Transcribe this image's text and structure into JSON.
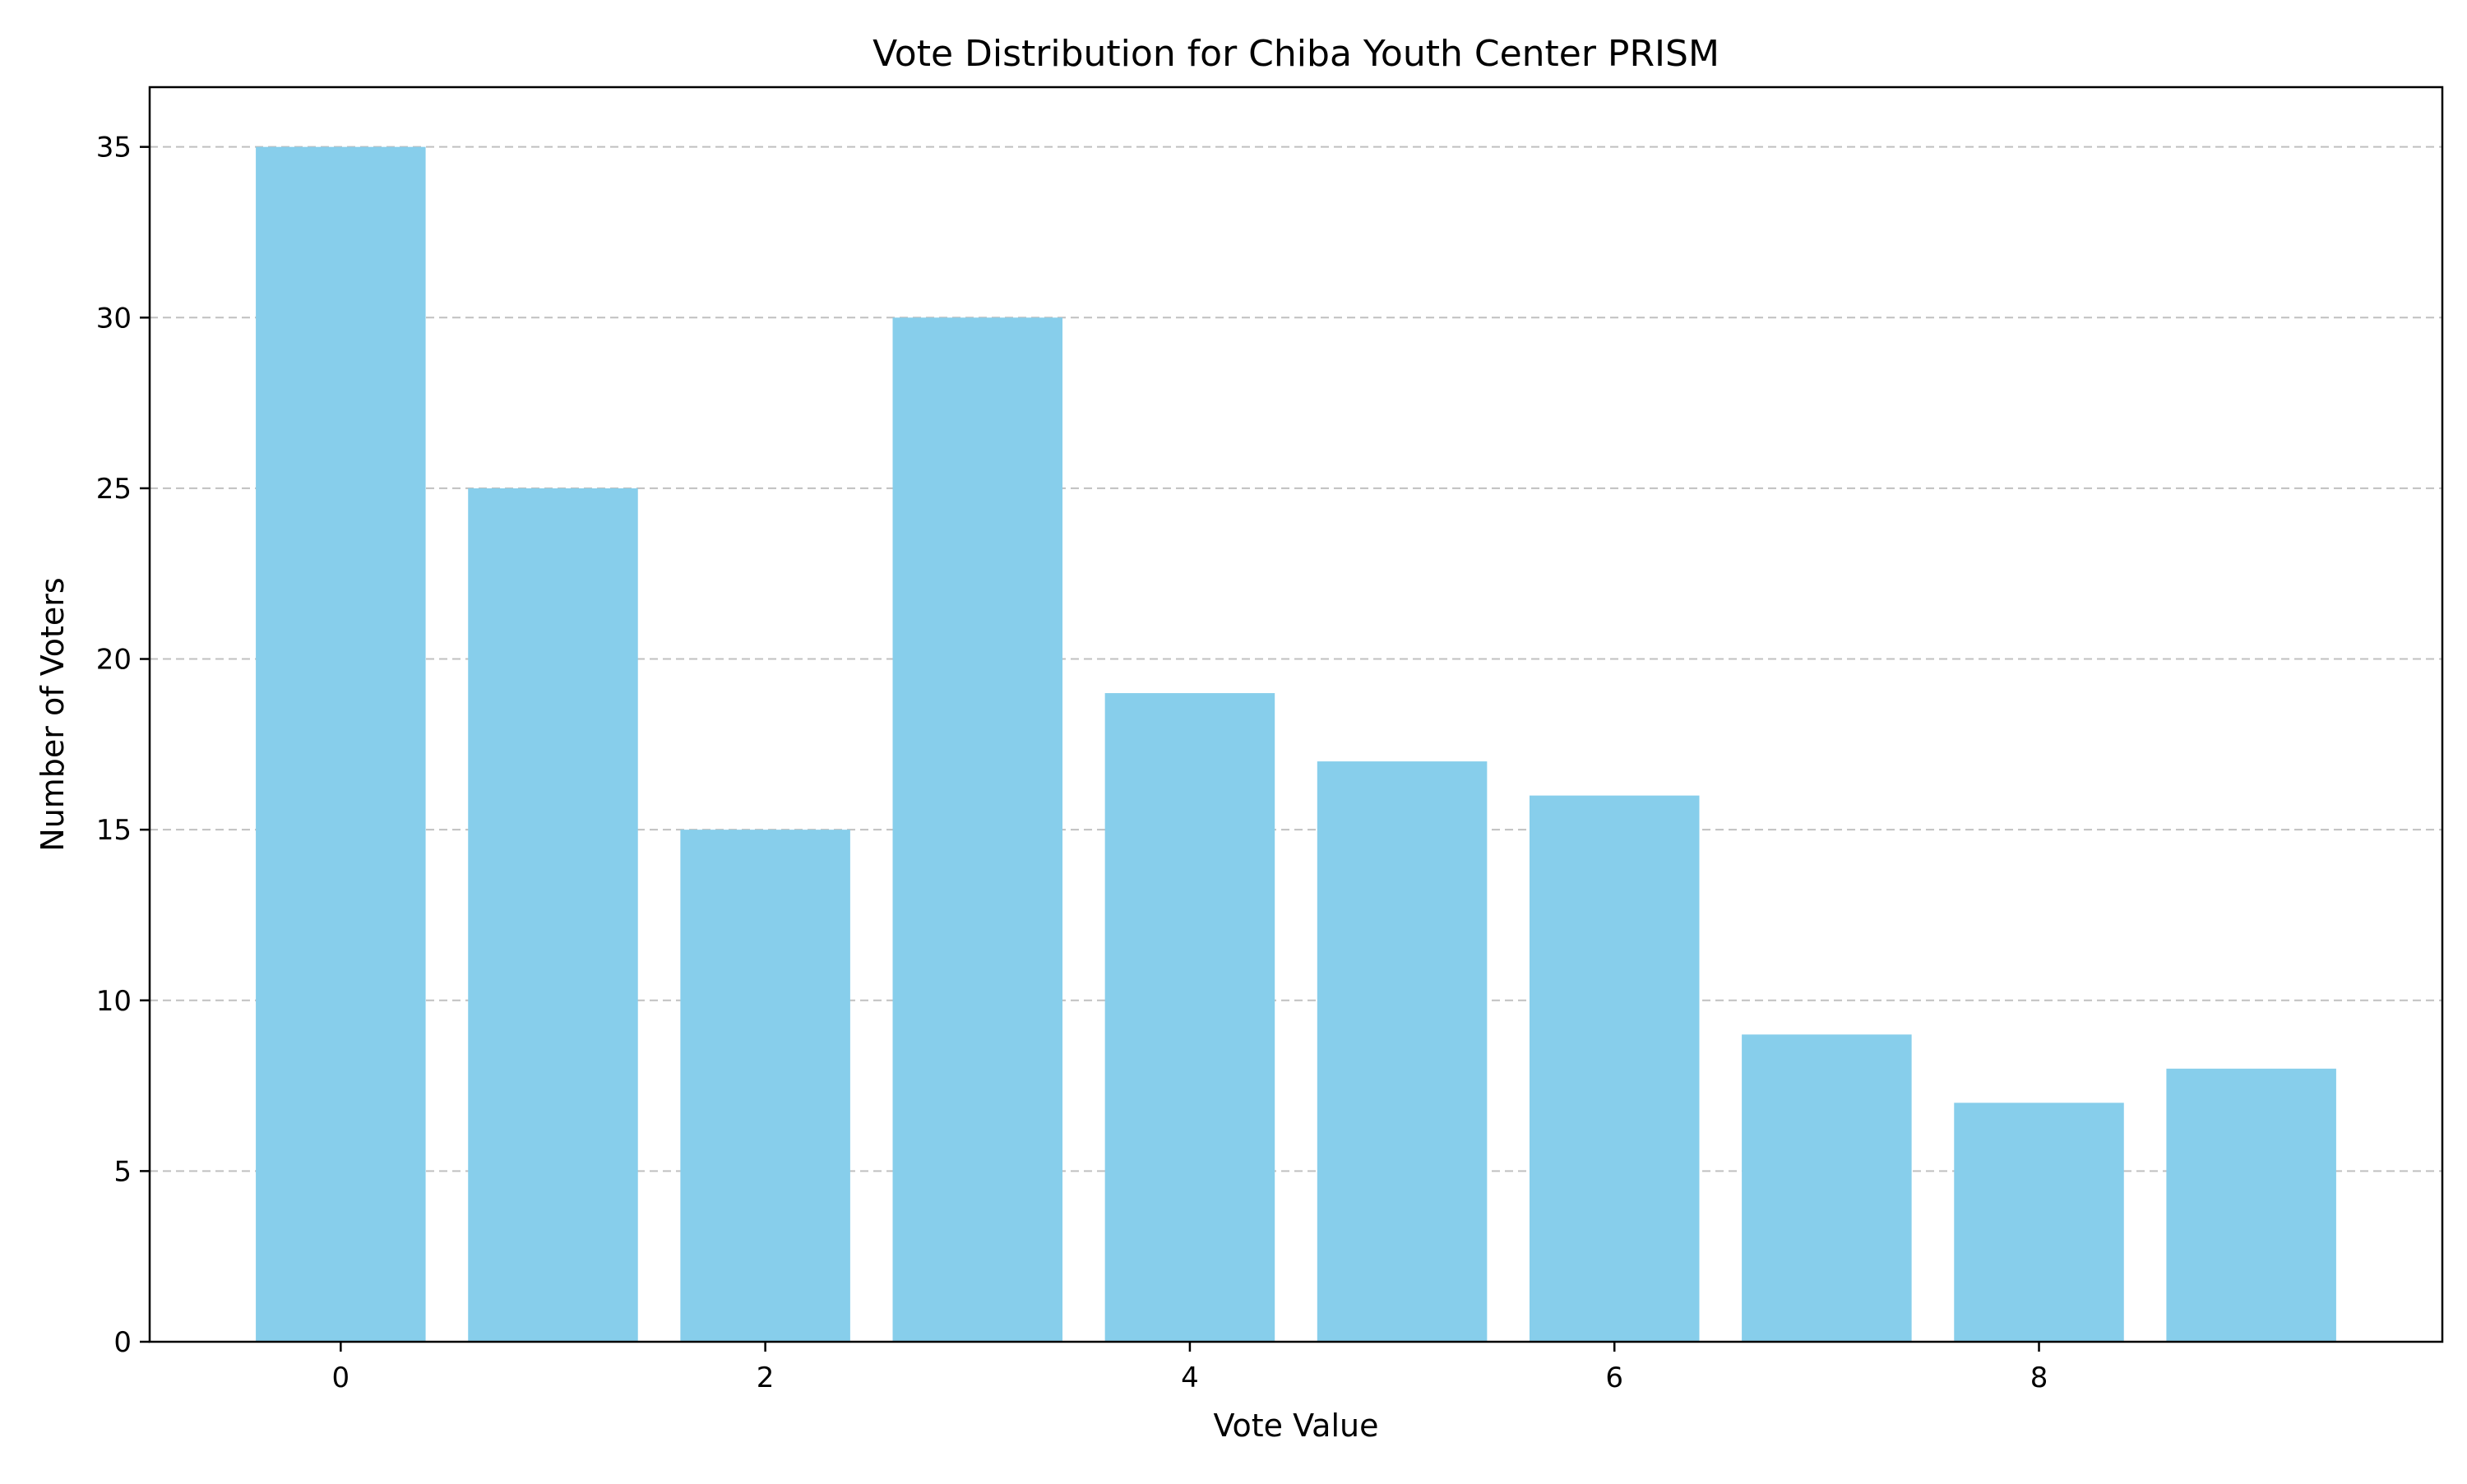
{
  "chart_data": {
    "type": "bar",
    "title": "Vote Distribution for Chiba Youth Center PRISM",
    "xlabel": "Vote Value",
    "ylabel": "Number of Voters",
    "categories": [
      0,
      1,
      2,
      3,
      4,
      5,
      6,
      7,
      8,
      9
    ],
    "values": [
      35,
      25,
      15,
      30,
      19,
      17,
      16,
      9,
      7,
      8
    ],
    "xlim": [
      -0.9,
      9.9
    ],
    "ylim": [
      0,
      36.75
    ],
    "xticks": [
      0,
      2,
      4,
      6,
      8
    ],
    "yticks": [
      0,
      5,
      10,
      15,
      20,
      25,
      30,
      35
    ],
    "bar_color": "#87ceeb",
    "grid": "y-dashed",
    "grid_color": "#c0c0c0"
  }
}
